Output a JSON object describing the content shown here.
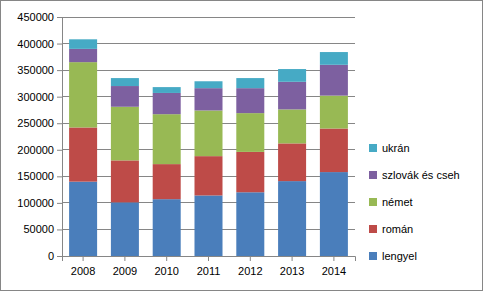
{
  "chart_data": {
    "type": "bar",
    "stacked": true,
    "grid": true,
    "legend": "right",
    "categories": [
      "2008",
      "2009",
      "2010",
      "2011",
      "2012",
      "2013",
      "2014"
    ],
    "ylim": [
      0,
      450000
    ],
    "yticks": [
      0,
      50000,
      100000,
      150000,
      200000,
      250000,
      300000,
      350000,
      400000,
      450000
    ],
    "series": [
      {
        "name": "lengyel",
        "color": "#4a7ebb",
        "values": [
          140000,
          101000,
          107000,
          114000,
          120000,
          141000,
          158000
        ]
      },
      {
        "name": "román",
        "color": "#be4b48",
        "values": [
          102000,
          79000,
          66000,
          74000,
          76000,
          71000,
          82000
        ]
      },
      {
        "name": "német",
        "color": "#98b954",
        "values": [
          123000,
          101000,
          94000,
          86000,
          73000,
          64000,
          62000
        ]
      },
      {
        "name": "szlovák és cseh",
        "color": "#7d60a0",
        "values": [
          25000,
          39000,
          40000,
          42000,
          47000,
          52000,
          58000
        ]
      },
      {
        "name": "ukrán",
        "color": "#46aac5",
        "values": [
          18000,
          15000,
          11000,
          13000,
          19000,
          24000,
          24000
        ]
      }
    ]
  }
}
